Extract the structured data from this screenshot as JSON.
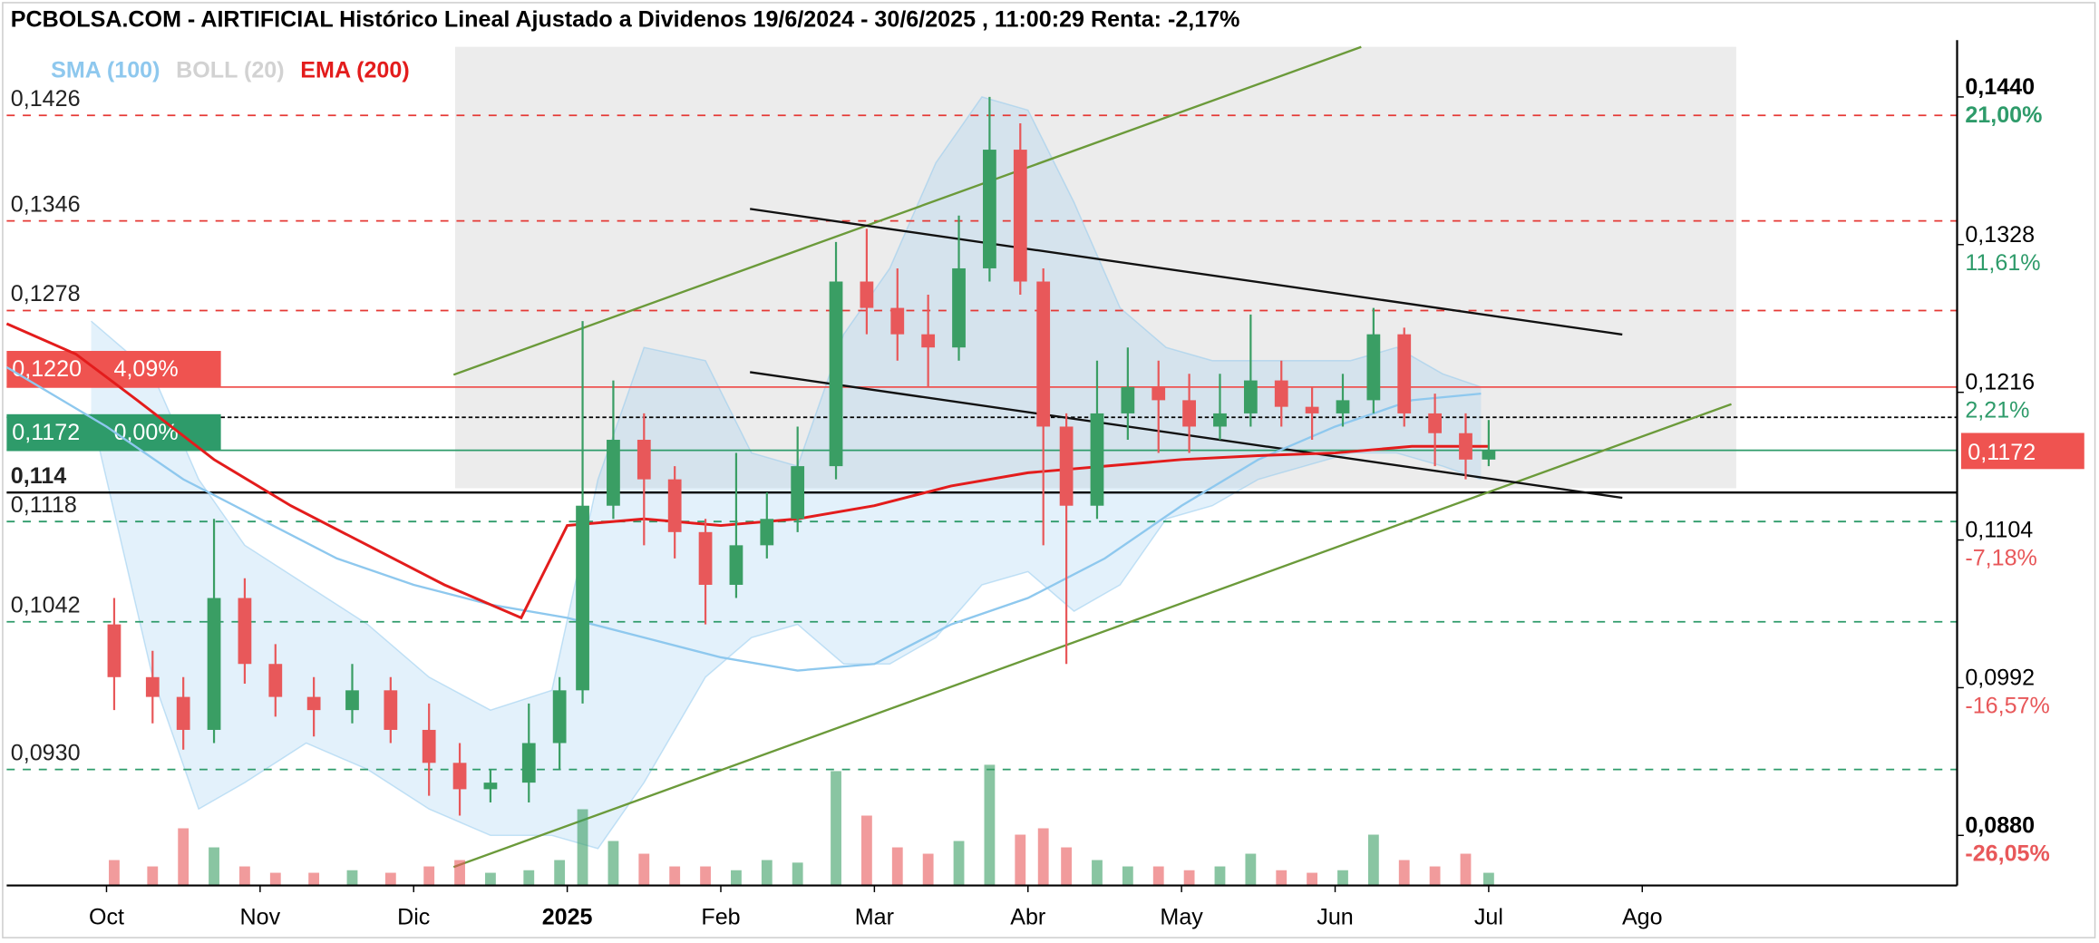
{
  "chart_data": {
    "type": "candlestick",
    "title": "PCBOLSA.COM - AIRTIFICIAL Histórico Lineal Ajustado a Dividenos 19/6/2024 - 30/6/2025 , 11:00:29 Renta: -2,17%",
    "legend": [
      {
        "name": "SMA (100)",
        "color": "#8ec8ee"
      },
      {
        "name": "BOLL (20)",
        "color": "#d2d2d2"
      },
      {
        "name": "EMA (200)",
        "color": "#e31c1c"
      }
    ],
    "up_color": "#3a9e64",
    "down_color": "#e8585a",
    "xlim": [
      9.35,
      22.05
    ],
    "ylim": [
      0.0842,
      0.1478
    ],
    "xticks": [
      {
        "value": 10,
        "label": "Oct"
      },
      {
        "value": 11,
        "label": "Nov"
      },
      {
        "value": 12,
        "label": "Dic"
      },
      {
        "value": 13,
        "label": "2025"
      },
      {
        "value": 14,
        "label": "Feb"
      },
      {
        "value": 15,
        "label": "Mar"
      },
      {
        "value": 16,
        "label": "Abr"
      },
      {
        "value": 17,
        "label": "May"
      },
      {
        "value": 18,
        "label": "Jun"
      },
      {
        "value": 19,
        "label": "Jul"
      },
      {
        "value": 20,
        "label": "Ago"
      }
    ],
    "yticks": [
      {
        "value": 0.144,
        "label": "0,1440",
        "pct": "21,00%"
      },
      {
        "value": 0.1328,
        "label": "0,1328",
        "pct": "11,61%"
      },
      {
        "value": 0.1216,
        "label": "0,1216",
        "pct": "2,21%"
      },
      {
        "value": 0.1104,
        "label": "0,1104",
        "pct": "-7,18%"
      },
      {
        "value": 0.0992,
        "label": "0,0992",
        "pct": "-16,57%"
      },
      {
        "value": 0.088,
        "label": "0,0880",
        "pct": "-26,05%"
      }
    ],
    "levels": [
      {
        "value": 0.1426,
        "label": "0,1426",
        "color": "#e53935",
        "style": "dashed"
      },
      {
        "value": 0.1346,
        "label": "0,1346",
        "color": "#e53935",
        "style": "dashed"
      },
      {
        "value": 0.1278,
        "label": "0,1278",
        "color": "#e53935",
        "style": "dashed"
      },
      {
        "value": 0.122,
        "label": "0,1220",
        "pct": "4,09%",
        "color": "#ef5350",
        "style": "box"
      },
      {
        "value": 0.1197,
        "color": "#000000",
        "style": "dotted"
      },
      {
        "value": 0.1172,
        "label": "0,1172",
        "pct": "0,00%",
        "color": "#2e9b6a",
        "style": "box"
      },
      {
        "value": 0.114,
        "label": "0,114",
        "color": "#000000",
        "style": "bold"
      },
      {
        "value": 0.1118,
        "label": "0,1118",
        "color": "#2e9b6a",
        "style": "dashed"
      },
      {
        "value": 0.1042,
        "label": "0,1042",
        "color": "#2e9b6a",
        "style": "dashed"
      },
      {
        "value": 0.093,
        "label": "0,0930",
        "color": "#2e9b6a",
        "style": "dashed"
      }
    ],
    "last": {
      "value": 0.1172,
      "label": "0,1172",
      "color": "#ef5350"
    },
    "x": [
      10.05,
      10.3,
      10.5,
      10.7,
      10.9,
      11.1,
      11.35,
      11.6,
      11.85,
      12.1,
      12.3,
      12.5,
      12.75,
      12.95,
      13.1,
      13.3,
      13.5,
      13.7,
      13.9,
      14.1,
      14.3,
      14.5,
      14.75,
      14.95,
      15.15,
      15.35,
      15.55,
      15.75,
      15.95,
      16.1,
      16.25,
      16.45,
      16.65,
      16.85,
      17.05,
      17.25,
      17.45,
      17.65,
      17.85,
      18.05,
      18.25,
      18.45,
      18.65,
      18.85,
      19.0
    ],
    "open": [
      0.104,
      0.1,
      0.0985,
      0.096,
      0.106,
      0.101,
      0.0985,
      0.0975,
      0.099,
      0.096,
      0.0935,
      0.0915,
      0.092,
      0.095,
      0.099,
      0.113,
      0.118,
      0.115,
      0.111,
      0.107,
      0.11,
      0.112,
      0.116,
      0.13,
      0.128,
      0.126,
      0.125,
      0.131,
      0.14,
      0.13,
      0.119,
      0.113,
      0.12,
      0.122,
      0.121,
      0.119,
      0.12,
      0.1225,
      0.1205,
      0.12,
      0.121,
      0.126,
      0.12,
      0.1185,
      0.1165
    ],
    "high": [
      0.106,
      0.102,
      0.1,
      0.112,
      0.1075,
      0.1025,
      0.1,
      0.101,
      0.1,
      0.098,
      0.095,
      0.093,
      0.098,
      0.1,
      0.127,
      0.1225,
      0.12,
      0.116,
      0.112,
      0.117,
      0.114,
      0.119,
      0.133,
      0.134,
      0.131,
      0.129,
      0.135,
      0.144,
      0.142,
      0.131,
      0.12,
      0.124,
      0.125,
      0.124,
      0.123,
      0.123,
      0.1275,
      0.124,
      0.122,
      0.123,
      0.128,
      0.1265,
      0.1215,
      0.12,
      0.1195
    ],
    "low": [
      0.0975,
      0.0965,
      0.0945,
      0.095,
      0.0995,
      0.097,
      0.0955,
      0.0965,
      0.095,
      0.091,
      0.0895,
      0.0905,
      0.0905,
      0.093,
      0.098,
      0.112,
      0.11,
      0.109,
      0.104,
      0.106,
      0.109,
      0.111,
      0.115,
      0.126,
      0.124,
      0.122,
      0.124,
      0.13,
      0.129,
      0.11,
      0.101,
      0.112,
      0.118,
      0.117,
      0.117,
      0.118,
      0.119,
      0.119,
      0.118,
      0.119,
      0.12,
      0.119,
      0.116,
      0.115,
      0.116
    ],
    "close": [
      0.1,
      0.0985,
      0.096,
      0.106,
      0.101,
      0.0985,
      0.0975,
      0.099,
      0.096,
      0.0935,
      0.0915,
      0.092,
      0.095,
      0.099,
      0.113,
      0.118,
      0.115,
      0.111,
      0.107,
      0.11,
      0.112,
      0.116,
      0.13,
      0.128,
      0.126,
      0.125,
      0.131,
      0.14,
      0.13,
      0.119,
      0.113,
      0.12,
      0.122,
      0.121,
      0.119,
      0.12,
      0.1225,
      0.1205,
      0.12,
      0.121,
      0.126,
      0.12,
      0.1185,
      0.1165,
      0.1172
    ],
    "volume": [
      20,
      15,
      45,
      30,
      15,
      10,
      10,
      12,
      10,
      15,
      20,
      10,
      12,
      20,
      60,
      35,
      25,
      15,
      15,
      12,
      20,
      18,
      90,
      55,
      30,
      25,
      35,
      95,
      40,
      45,
      30,
      20,
      15,
      15,
      12,
      15,
      25,
      12,
      10,
      12,
      40,
      20,
      15,
      25,
      10
    ],
    "volume_lim": [
      0,
      100
    ],
    "sma": {
      "x": [
        9.35,
        10.0,
        10.5,
        11.0,
        11.5,
        12.0,
        12.5,
        13.0,
        13.5,
        14.0,
        14.5,
        15.0,
        15.5,
        16.0,
        16.5,
        17.0,
        17.5,
        18.0,
        18.5,
        18.95
      ],
      "values": [
        0.1235,
        0.119,
        0.115,
        0.112,
        0.109,
        0.107,
        0.1055,
        0.1045,
        0.103,
        0.1015,
        0.1005,
        0.101,
        0.104,
        0.106,
        0.109,
        0.113,
        0.1165,
        0.119,
        0.121,
        0.1215
      ]
    },
    "ema": {
      "x": [
        9.35,
        9.8,
        10.2,
        10.7,
        11.2,
        11.7,
        12.2,
        12.7,
        13.0,
        13.5,
        14.0,
        14.5,
        15.0,
        15.5,
        16.0,
        16.5,
        17.0,
        17.5,
        18.0,
        18.5,
        19.0
      ],
      "values": [
        0.1268,
        0.1245,
        0.121,
        0.1165,
        0.113,
        0.11,
        0.107,
        0.1045,
        0.1115,
        0.112,
        0.1115,
        0.112,
        0.113,
        0.1145,
        0.1155,
        0.116,
        0.1165,
        0.1168,
        0.117,
        0.1175,
        0.1175
      ]
    },
    "boll": {
      "x": [
        9.9,
        10.3,
        10.6,
        10.9,
        11.3,
        11.7,
        12.1,
        12.5,
        12.9,
        13.2,
        13.5,
        13.9,
        14.2,
        14.5,
        14.8,
        15.1,
        15.4,
        15.7,
        16.0,
        16.3,
        16.6,
        16.9,
        17.2,
        17.5,
        17.8,
        18.1,
        18.4,
        18.7,
        18.95
      ],
      "upper": [
        0.127,
        0.123,
        0.115,
        0.11,
        0.107,
        0.104,
        0.1,
        0.0975,
        0.099,
        0.115,
        0.125,
        0.124,
        0.117,
        0.116,
        0.126,
        0.131,
        0.139,
        0.144,
        0.143,
        0.136,
        0.128,
        0.125,
        0.124,
        0.124,
        0.124,
        0.124,
        0.125,
        0.123,
        0.122
      ],
      "lower": [
        0.12,
        0.1,
        0.09,
        0.092,
        0.095,
        0.093,
        0.09,
        0.088,
        0.088,
        0.087,
        0.092,
        0.1,
        0.103,
        0.104,
        0.101,
        0.101,
        0.103,
        0.107,
        0.108,
        0.105,
        0.107,
        0.112,
        0.113,
        0.115,
        0.116,
        0.117,
        0.117,
        0.116,
        0.115
      ]
    },
    "trendlines": [
      {
        "color": "#6b9a3a",
        "x": [
          12.26,
          18.17
        ],
        "y": [
          0.12293,
          0.14779
        ]
      },
      {
        "color": "#6b9a3a",
        "x": [
          12.26,
          20.58
        ],
        "y": [
          0.0856,
          0.1207
        ]
      },
      {
        "color": "#111111",
        "x": [
          14.19,
          19.87
        ],
        "y": [
          0.13551,
          0.12598
        ]
      },
      {
        "color": "#111111",
        "x": [
          14.19,
          19.87
        ],
        "y": [
          0.12313,
          0.1136
        ]
      }
    ]
  }
}
